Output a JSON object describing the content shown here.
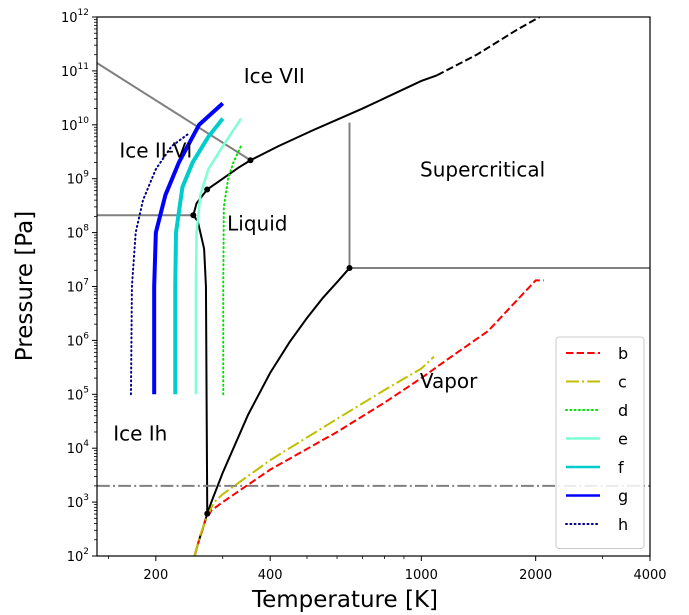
{
  "chart_data": {
    "type": "line",
    "xlabel": "Temperature [K]",
    "ylabel": "Pressure [Pa]",
    "xscale": "log",
    "yscale": "log",
    "xlim": [
      140,
      4000
    ],
    "ylim": [
      100,
      1000000000000.0
    ],
    "x_ticks": [
      {
        "value": 200,
        "label": "200"
      },
      {
        "value": 400,
        "label": "400"
      },
      {
        "value": 1000,
        "label": "1000"
      },
      {
        "value": 2000,
        "label": "2000"
      },
      {
        "value": 4000,
        "label": "4000"
      }
    ],
    "y_ticks": [
      {
        "exp": 2,
        "base": "10",
        "sup": "2"
      },
      {
        "exp": 3,
        "base": "10",
        "sup": "3"
      },
      {
        "exp": 4,
        "base": "10",
        "sup": "4"
      },
      {
        "exp": 5,
        "base": "10",
        "sup": "5"
      },
      {
        "exp": 6,
        "base": "10",
        "sup": "6"
      },
      {
        "exp": 7,
        "base": "10",
        "sup": "7"
      },
      {
        "exp": 8,
        "base": "10",
        "sup": "8"
      },
      {
        "exp": 9,
        "base": "10",
        "sup": "9"
      },
      {
        "exp": 10,
        "base": "10",
        "sup": "10"
      },
      {
        "exp": 11,
        "base": "10",
        "sup": "11"
      },
      {
        "exp": 12,
        "base": "10",
        "sup": "12"
      }
    ],
    "region_labels": [
      {
        "text": "Ice VII",
        "x": 410,
        "y": 60000000000.0
      },
      {
        "text": "Ice II-VI",
        "x": 200,
        "y": 2500000000.0
      },
      {
        "text": "Supercritical",
        "x": 1450,
        "y": 1100000000.0
      },
      {
        "text": "Liquid",
        "x": 370,
        "y": 110000000.0
      },
      {
        "text": "Vapor",
        "x": 1180,
        "y": 130000.0
      },
      {
        "text": "Ice Ih",
        "x": 182,
        "y": 14000.0
      }
    ],
    "phase_boundaries": [
      {
        "name": "melting-ih",
        "color": "#000000",
        "style": "solid",
        "width": 2,
        "points": [
          [
            273.16,
            611
          ],
          [
            272,
            100000.0
          ],
          [
            271,
            10000000.0
          ],
          [
            268,
            50000000.0
          ],
          [
            258,
            160000000.0
          ],
          [
            251,
            210000000.0
          ]
        ]
      },
      {
        "name": "melting-iii-vi",
        "color": "#000000",
        "style": "solid",
        "width": 2,
        "points": [
          [
            251,
            210000000.0
          ],
          [
            256,
            350000000.0
          ],
          [
            273,
            630000000.0
          ],
          [
            300,
            1000000000.0
          ],
          [
            330,
            1600000000.0
          ],
          [
            355,
            2200000000.0
          ]
        ]
      },
      {
        "name": "melting-vii",
        "color": "#000000",
        "style": "solid",
        "width": 2,
        "points": [
          [
            355,
            2200000000.0
          ],
          [
            420,
            4000000000.0
          ],
          [
            520,
            8000000000.0
          ],
          [
            700,
            20000000000.0
          ],
          [
            1000,
            65000000000.0
          ],
          [
            1100,
            83000000000.0
          ]
        ]
      },
      {
        "name": "melting-vii-extrapolated",
        "color": "#000000",
        "style": "dashed",
        "width": 2,
        "points": [
          [
            1100,
            83000000000.0
          ],
          [
            1400,
            200000000000.0
          ],
          [
            1800,
            600000000000.0
          ],
          [
            2050,
            1000000000000.0
          ]
        ]
      },
      {
        "name": "vaporization",
        "color": "#000000",
        "style": "solid",
        "width": 2,
        "points": [
          [
            273.16,
            611
          ],
          [
            280,
            1000.0
          ],
          [
            300,
            3500.0
          ],
          [
            350,
            42000.0
          ],
          [
            400,
            250000.0
          ],
          [
            450,
            930000.0
          ],
          [
            500,
            2600000.0
          ],
          [
            550,
            6100000.0
          ],
          [
            600,
            12000000.0
          ],
          [
            647,
            22000000.0
          ]
        ]
      },
      {
        "name": "sublimation",
        "color": "#000000",
        "style": "solid",
        "width": 2,
        "points": [
          [
            253,
            100
          ],
          [
            260,
            200
          ],
          [
            265,
            300
          ],
          [
            273.16,
            611
          ]
        ]
      },
      {
        "name": "critical-pressure-line",
        "color": "#808080",
        "style": "solid",
        "width": 2,
        "points": [
          [
            647,
            22000000.0
          ],
          [
            4000,
            22000000.0
          ]
        ]
      },
      {
        "name": "critical-temperature-line",
        "color": "#808080",
        "style": "solid",
        "width": 2,
        "points": [
          [
            647,
            22000000.0
          ],
          [
            647,
            11000000000.0
          ]
        ]
      },
      {
        "name": "ice-ih-iii-line",
        "color": "#808080",
        "style": "solid",
        "width": 2,
        "points": [
          [
            140,
            210000000.0
          ],
          [
            251,
            210000000.0
          ]
        ]
      },
      {
        "name": "ice-vi-vii-line",
        "color": "#808080",
        "style": "solid",
        "width": 2,
        "points": [
          [
            140,
            140000000000.0
          ],
          [
            355,
            2200000000.0
          ]
        ]
      },
      {
        "name": "triple-point-pressure",
        "color": "#808080",
        "style": "dashdot",
        "width": 2,
        "points": [
          [
            140,
            2000
          ],
          [
            4000,
            2000
          ]
        ]
      }
    ],
    "triple_points": [
      [
        273.16,
        611
      ],
      [
        251,
        210000000.0
      ],
      [
        273,
        630000000.0
      ],
      [
        355,
        2200000000.0
      ],
      [
        647,
        22000000.0
      ]
    ],
    "legend": {
      "position": "lower right"
    },
    "series": [
      {
        "name": "b",
        "color": "#ff0000",
        "style": "dashed",
        "width": 2,
        "points": [
          [
            253,
            100
          ],
          [
            260,
            200
          ],
          [
            270,
            450
          ],
          [
            280,
            700
          ],
          [
            300,
            1000
          ],
          [
            400,
            4000
          ],
          [
            600,
            20000.0
          ],
          [
            800,
            70000.0
          ],
          [
            1000,
            200000.0
          ],
          [
            1200,
            500000.0
          ],
          [
            1500,
            1500000.0
          ],
          [
            2000,
            13000000.0
          ],
          [
            2100,
            13000000.0
          ]
        ]
      },
      {
        "name": "c",
        "color": "#bfbf00",
        "style": "dashdot",
        "width": 2,
        "points": [
          [
            253,
            100
          ],
          [
            262,
            250
          ],
          [
            273,
            550
          ],
          [
            285,
            1000
          ],
          [
            300,
            1400
          ],
          [
            400,
            6000
          ],
          [
            600,
            35000.0
          ],
          [
            800,
            120000.0
          ],
          [
            1000,
            300000.0
          ],
          [
            1080,
            500000.0
          ]
        ]
      },
      {
        "name": "d",
        "color": "#00e000",
        "style": "dotted",
        "width": 2,
        "points": [
          [
            301,
            100000.0
          ],
          [
            301,
            10000000.0
          ],
          [
            302,
            300000000.0
          ],
          [
            310,
            1000000000.0
          ],
          [
            320,
            2000000000.0
          ],
          [
            335,
            4000000000.0
          ]
        ]
      },
      {
        "name": "e",
        "color": "#7fffd4",
        "style": "solid",
        "width": 2.5,
        "points": [
          [
            255,
            100000.0
          ],
          [
            255,
            10000000.0
          ],
          [
            256,
            100000000.0
          ],
          [
            262,
            500000000.0
          ],
          [
            275,
            1500000000.0
          ],
          [
            300,
            4000000000.0
          ],
          [
            335,
            13000000000.0
          ]
        ]
      },
      {
        "name": "f",
        "color": "#00cccc",
        "style": "solid",
        "width": 4,
        "points": [
          [
            225,
            100000.0
          ],
          [
            225,
            10000000.0
          ],
          [
            226,
            100000000.0
          ],
          [
            235,
            700000000.0
          ],
          [
            250,
            2000000000.0
          ],
          [
            275,
            6000000000.0
          ],
          [
            300,
            13000000000.0
          ]
        ]
      },
      {
        "name": "g",
        "color": "#0000ff",
        "style": "solid",
        "width": 4,
        "points": [
          [
            198,
            100000.0
          ],
          [
            198,
            10000000.0
          ],
          [
            200,
            100000000.0
          ],
          [
            212,
            500000000.0
          ],
          [
            230,
            2000000000.0
          ],
          [
            260,
            10000000000.0
          ],
          [
            300,
            25000000000.0
          ]
        ]
      },
      {
        "name": "h",
        "color": "#00008b",
        "style": "dotted",
        "width": 2,
        "points": [
          [
            172,
            100000.0
          ],
          [
            173,
            10000000.0
          ],
          [
            177,
            100000000.0
          ],
          [
            185,
            400000000.0
          ],
          [
            200,
            1500000000.0
          ],
          [
            220,
            4000000000.0
          ],
          [
            245,
            7000000000.0
          ]
        ]
      }
    ],
    "overlay_series": [
      {
        "name": "b",
        "color": "#ff0000",
        "style": "dashed",
        "width": 2,
        "points": [
          [
            600,
            20000.0
          ],
          [
            800,
            70000.0
          ]
        ]
      }
    ]
  }
}
